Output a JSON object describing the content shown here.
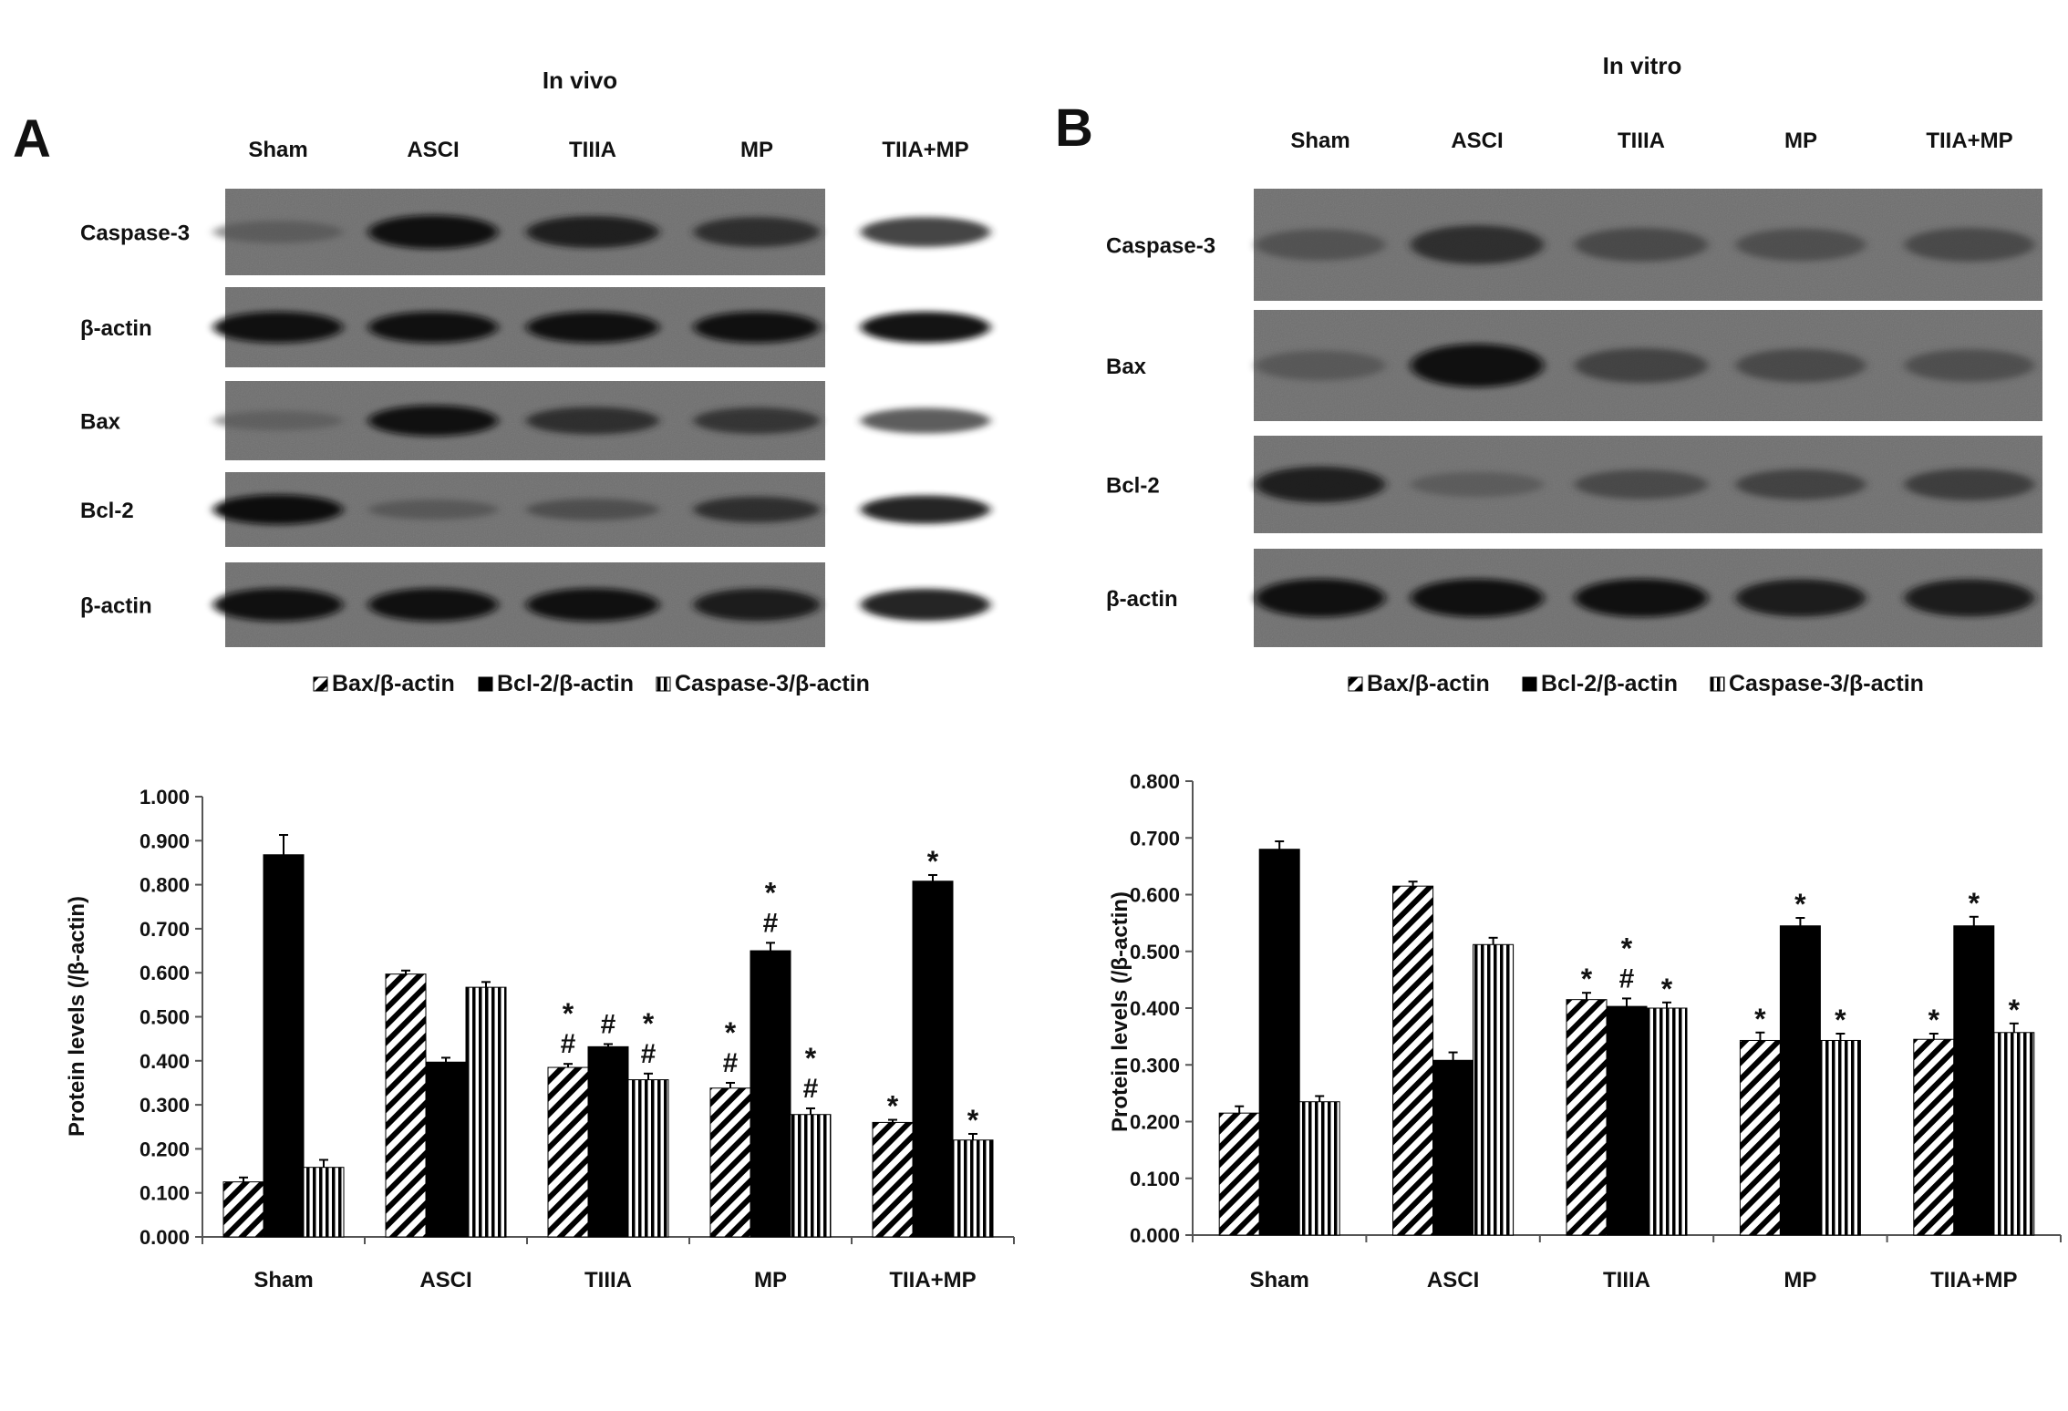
{
  "panels": [
    {
      "letter": "A",
      "title": "In vivo",
      "lanes": [
        "Sham",
        "ASCI",
        "TIIIA",
        "MP",
        "TIIA+MP"
      ],
      "blots": [
        {
          "label": "Caspase-3",
          "intensity": [
            0.35,
            0.95,
            0.85,
            0.75,
            0.75
          ]
        },
        {
          "label": "β-actin",
          "intensity": [
            0.95,
            0.95,
            0.95,
            0.95,
            0.95
          ]
        },
        {
          "label": "Bax",
          "intensity": [
            0.3,
            0.95,
            0.75,
            0.7,
            0.65
          ]
        },
        {
          "label": "Bcl-2",
          "intensity": [
            1.0,
            0.4,
            0.5,
            0.75,
            0.9
          ]
        },
        {
          "label": "β-actin",
          "intensity": [
            0.95,
            0.95,
            0.95,
            0.9,
            0.9
          ]
        }
      ]
    },
    {
      "letter": "B",
      "title": "In vitro",
      "lanes": [
        "Sham",
        "ASCI",
        "TIIIA",
        "MP",
        "TIIA+MP"
      ],
      "blots": [
        {
          "label": "Caspase-3",
          "intensity": [
            0.45,
            0.75,
            0.55,
            0.5,
            0.55
          ]
        },
        {
          "label": "Bax",
          "intensity": [
            0.4,
            0.95,
            0.6,
            0.55,
            0.5
          ]
        },
        {
          "label": "Bcl-2",
          "intensity": [
            0.85,
            0.35,
            0.55,
            0.6,
            0.65
          ]
        },
        {
          "label": "β-actin",
          "intensity": [
            0.95,
            0.95,
            0.95,
            0.9,
            0.9
          ]
        }
      ]
    }
  ],
  "chart_data": [
    {
      "type": "bar",
      "categories": [
        "Sham",
        "ASCI",
        "TIIIA",
        "MP",
        "TIIA+MP"
      ],
      "ylabel": "Protein levels (/β-actin)",
      "ylim": [
        0,
        1.0
      ],
      "yticks": [
        "0.000",
        "0.100",
        "0.200",
        "0.300",
        "0.400",
        "0.500",
        "0.600",
        "0.700",
        "0.800",
        "0.900",
        "1.000"
      ],
      "legend_position": "top",
      "series": [
        {
          "name": "Bax/β-actin",
          "pattern": "diagonal",
          "values": [
            0.125,
            0.597,
            0.385,
            0.338,
            0.26
          ],
          "errors": [
            0.01,
            0.008,
            0.008,
            0.012,
            0.006
          ],
          "annotations": [
            "",
            "",
            "*\n#",
            "*\n#",
            "*"
          ]
        },
        {
          "name": "Bcl-2/β-actin",
          "pattern": "solid",
          "values": [
            0.868,
            0.397,
            0.432,
            0.65,
            0.808
          ],
          "errors": [
            0.045,
            0.01,
            0.006,
            0.018,
            0.014
          ],
          "annotations": [
            "",
            "",
            "#",
            "*\n#",
            "*"
          ]
        },
        {
          "name": "Caspase-3/β-actin",
          "pattern": "vertical",
          "values": [
            0.158,
            0.567,
            0.357,
            0.278,
            0.22
          ],
          "errors": [
            0.017,
            0.012,
            0.014,
            0.014,
            0.014
          ],
          "annotations": [
            "",
            "",
            "*\n#",
            "*\n#",
            "*"
          ]
        }
      ]
    },
    {
      "type": "bar",
      "categories": [
        "Sham",
        "ASCI",
        "TIIIA",
        "MP",
        "TIIA+MP"
      ],
      "ylabel": "Protein levels (/β-actin)",
      "ylim": [
        0,
        0.8
      ],
      "yticks": [
        "0.000",
        "0.100",
        "0.200",
        "0.300",
        "0.400",
        "0.500",
        "0.600",
        "0.700",
        "0.800"
      ],
      "legend_position": "top",
      "series": [
        {
          "name": "Bax/β-actin",
          "pattern": "diagonal",
          "values": [
            0.215,
            0.615,
            0.415,
            0.343,
            0.345
          ],
          "errors": [
            0.012,
            0.008,
            0.012,
            0.014,
            0.01
          ],
          "annotations": [
            "",
            "",
            "*",
            "*",
            "*"
          ]
        },
        {
          "name": "Bcl-2/β-actin",
          "pattern": "solid",
          "values": [
            0.68,
            0.308,
            0.403,
            0.545,
            0.545
          ],
          "errors": [
            0.014,
            0.014,
            0.014,
            0.014,
            0.016
          ],
          "annotations": [
            "",
            "",
            "*\n#",
            "*",
            "*"
          ]
        },
        {
          "name": "Caspase-3/β-actin",
          "pattern": "vertical",
          "values": [
            0.235,
            0.512,
            0.4,
            0.343,
            0.357
          ],
          "errors": [
            0.01,
            0.012,
            0.01,
            0.012,
            0.016
          ],
          "annotations": [
            "",
            "",
            "*",
            "*",
            "*"
          ]
        }
      ]
    }
  ]
}
